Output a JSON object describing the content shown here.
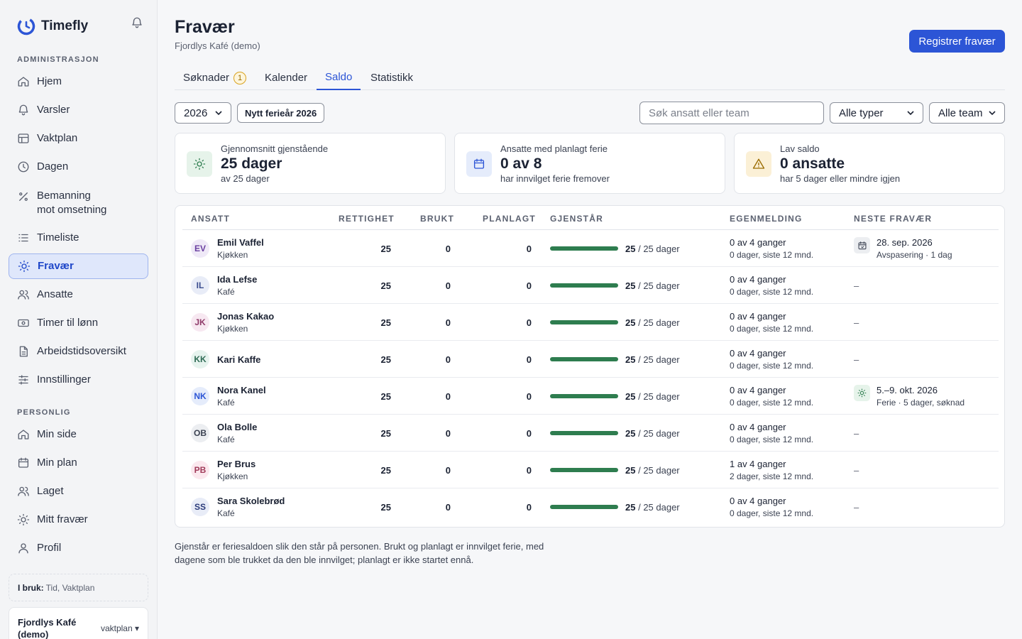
{
  "app": {
    "name": "Timefly"
  },
  "sidebar": {
    "admin_label": "ADMINISTRASJON",
    "personal_label": "PERSONLIG",
    "admin_items": [
      {
        "label": "Hjem",
        "icon": "home-icon"
      },
      {
        "label": "Varsler",
        "icon": "bell-icon"
      },
      {
        "label": "Vaktplan",
        "icon": "table-icon"
      },
      {
        "label": "Dagen",
        "icon": "clock-icon"
      },
      {
        "label": "Bemanning\nmot omsetning",
        "icon": "percent-icon"
      },
      {
        "label": "Timeliste",
        "icon": "list-icon"
      },
      {
        "label": "Fravær",
        "icon": "sun-icon"
      },
      {
        "label": "Ansatte",
        "icon": "users-icon"
      },
      {
        "label": "Timer til lønn",
        "icon": "money-icon"
      },
      {
        "label": "Arbeidstidsoversikt",
        "icon": "document-icon"
      },
      {
        "label": "Innstillinger",
        "icon": "sliders-icon"
      }
    ],
    "personal_items": [
      {
        "label": "Min side",
        "icon": "home-icon"
      },
      {
        "label": "Min plan",
        "icon": "calendar-icon"
      },
      {
        "label": "Laget",
        "icon": "users-icon"
      },
      {
        "label": "Mitt fravær",
        "icon": "sun-icon"
      },
      {
        "label": "Profil",
        "icon": "user-icon"
      }
    ],
    "in_use_label": "I bruk:",
    "in_use_value": "Tid, Vaktplan",
    "org_name": "Fjordlys Kafé (demo)",
    "org_plan": "vaktplan ▾"
  },
  "header": {
    "title": "Fravær",
    "subtitle": "Fjordlys Kafé (demo)",
    "primary_action": "Registrer fravær"
  },
  "tabs": [
    {
      "label": "Søknader",
      "badge": "1"
    },
    {
      "label": "Kalender"
    },
    {
      "label": "Saldo",
      "active": true
    },
    {
      "label": "Statistikk"
    }
  ],
  "filters": {
    "year": "2026",
    "new_year_button": "Nytt ferieår 2026",
    "search_placeholder": "Søk ansatt eller team",
    "type": "Alle typer",
    "team": "Alle team"
  },
  "cards": [
    {
      "label": "Gjennomsnitt gjenstående",
      "value": "25 dager",
      "sub": "av 25 dager",
      "icon": "sun-icon",
      "color": "#2e7d4f",
      "bg": "#e6f3ea"
    },
    {
      "label": "Ansatte med planlagt ferie",
      "value": "0 av 8",
      "sub": "har innvilget ferie fremover",
      "icon": "calendar-icon",
      "color": "#2c55d6",
      "bg": "#e5ecfb"
    },
    {
      "label": "Lav saldo",
      "value": "0 ansatte",
      "sub": "har 5 dager eller mindre igjen",
      "icon": "warning-icon",
      "color": "#9a6b00",
      "bg": "#fbf0d6"
    }
  ],
  "table": {
    "columns": [
      "ANSATT",
      "RETTIGHET",
      "BRUKT",
      "PLANLAGT",
      "GJENSTÅR",
      "EGENMELDING",
      "NESTE FRAVÆR"
    ],
    "rows": [
      {
        "initials": "EV",
        "name": "Emil Vaffel",
        "team": "Kjøkken",
        "entitlement": "25",
        "used": "0",
        "planned": "0",
        "remaining": "25",
        "remaining_of": "/ 25 dager",
        "remaining_fraction": 1,
        "sick1": "0 av 4 ganger",
        "sick2": "0 dager, siste 12 mnd.",
        "next1": "28. sep. 2026",
        "next2": "Avspasering · 1 dag",
        "next_icon": "calendar-icon",
        "avatar_bg": "#efe9f7",
        "avatar_fg": "#6a3fa0"
      },
      {
        "initials": "IL",
        "name": "Ida Lefse",
        "team": "Kafé",
        "entitlement": "25",
        "used": "0",
        "planned": "0",
        "remaining": "25",
        "remaining_of": "/ 25 dager",
        "remaining_fraction": 1,
        "sick1": "0 av 4 ganger",
        "sick2": "0 dager, siste 12 mnd.",
        "next_dash": "–",
        "avatar_bg": "#e8ecf7",
        "avatar_fg": "#3b4d8f"
      },
      {
        "initials": "JK",
        "name": "Jonas Kakao",
        "team": "Kjøkken",
        "entitlement": "25",
        "used": "0",
        "planned": "0",
        "remaining": "25",
        "remaining_of": "/ 25 dager",
        "remaining_fraction": 1,
        "sick1": "0 av 4 ganger",
        "sick2": "0 dager, siste 12 mnd.",
        "next_dash": "–",
        "avatar_bg": "#f7e8f1",
        "avatar_fg": "#8f3b6a"
      },
      {
        "initials": "KK",
        "name": "Kari Kaffe",
        "team": "",
        "entitlement": "25",
        "used": "0",
        "planned": "0",
        "remaining": "25",
        "remaining_of": "/ 25 dager",
        "remaining_fraction": 1,
        "sick1": "0 av 4 ganger",
        "sick2": "0 dager, siste 12 mnd.",
        "next_dash": "–",
        "avatar_bg": "#e6f3ee",
        "avatar_fg": "#2e6b55"
      },
      {
        "initials": "NK",
        "name": "Nora Kanel",
        "team": "Kafé",
        "entitlement": "25",
        "used": "0",
        "planned": "0",
        "remaining": "25",
        "remaining_of": "/ 25 dager",
        "remaining_fraction": 1,
        "sick1": "0 av 4 ganger",
        "sick2": "0 dager, siste 12 mnd.",
        "next1": "5.–9. okt. 2026",
        "next2": "Ferie · 5 dager, søknad",
        "next_icon": "sun-icon",
        "avatar_bg": "#e5ecfb",
        "avatar_fg": "#2c55d6"
      },
      {
        "initials": "OB",
        "name": "Ola Bolle",
        "team": "Kafé",
        "entitlement": "25",
        "used": "0",
        "planned": "0",
        "remaining": "25",
        "remaining_of": "/ 25 dager",
        "remaining_fraction": 1,
        "sick1": "0 av 4 ganger",
        "sick2": "0 dager, siste 12 mnd.",
        "next_dash": "–",
        "avatar_bg": "#eceef1",
        "avatar_fg": "#3b4252"
      },
      {
        "initials": "PB",
        "name": "Per Brus",
        "team": "Kjøkken",
        "entitlement": "25",
        "used": "0",
        "planned": "0",
        "remaining": "25",
        "remaining_of": "/ 25 dager",
        "remaining_fraction": 1,
        "sick1": "1 av 4 ganger",
        "sick2": "2 dager, siste 12 mnd.",
        "next_dash": "–",
        "avatar_bg": "#fbe8ee",
        "avatar_fg": "#a03b5a"
      },
      {
        "initials": "SS",
        "name": "Sara Skolebrød",
        "team": "Kafé",
        "entitlement": "25",
        "used": "0",
        "planned": "0",
        "remaining": "25",
        "remaining_of": "/ 25 dager",
        "remaining_fraction": 1,
        "sick1": "0 av 4 ganger",
        "sick2": "0 dager, siste 12 mnd.",
        "next_dash": "–",
        "avatar_bg": "#e8ecf7",
        "avatar_fg": "#2a3a7a"
      }
    ]
  },
  "footnote": "Gjenstår er feriesaldoen slik den står på personen. Brukt og planlagt er innvilget ferie, med dagene som ble trukket da den ble innvilget; planlagt er ikke startet ennå."
}
